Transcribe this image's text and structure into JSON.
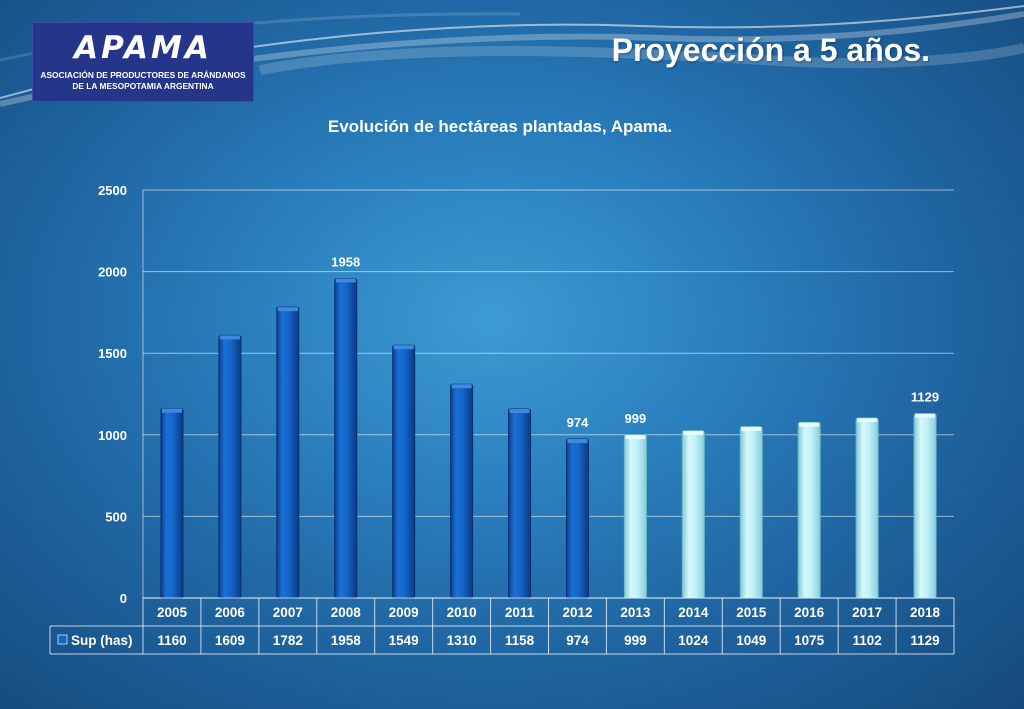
{
  "header": {
    "logo_wordmark": "APAMA",
    "logo_line1": "ASOCIACIÓN DE PRODUCTORES DE ARÁNDANOS",
    "logo_line2": "DE LA MESOPOTAMIA ARGENTINA",
    "slide_title": "Proyección a 5 años."
  },
  "chart_data": {
    "type": "bar",
    "title": "Evolución de hectáreas plantadas, Apama.",
    "categories": [
      "2005",
      "2006",
      "2007",
      "2008",
      "2009",
      "2010",
      "2011",
      "2012",
      "2013",
      "2014",
      "2015",
      "2016",
      "2017",
      "2018"
    ],
    "series": [
      {
        "name": "Sup (has)",
        "values": [
          1160,
          1609,
          1782,
          1958,
          1549,
          1310,
          1158,
          974,
          999,
          1024,
          1049,
          1075,
          1102,
          1129
        ]
      }
    ],
    "projected_from": "2013",
    "colors": {
      "actual": "#1565c8",
      "projected": "#bff0f6"
    },
    "ylim": [
      0,
      2500
    ],
    "yticks": [
      0,
      500,
      1000,
      1500,
      2000,
      2500
    ],
    "data_labels": {
      "2008": "1958",
      "2012": "974",
      "2013": "999",
      "2018": "1129"
    },
    "grid": true,
    "data_table": true
  }
}
